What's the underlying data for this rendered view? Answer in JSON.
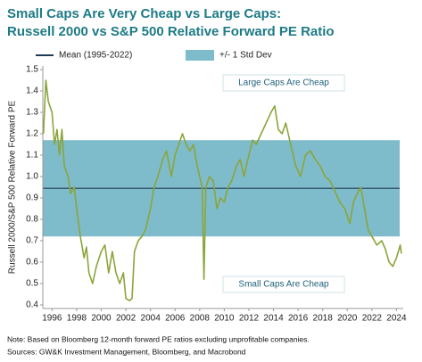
{
  "chart_data": {
    "type": "line",
    "title": [
      "Small Caps Are Very Cheap vs Large Caps:",
      "Russell 2000 vs S&P 500 Relative Forward PE Ratio"
    ],
    "y_label": "Russell 2000/S&P 500 Relative Forward PE",
    "mean": {
      "label": "Mean (1995-2022)",
      "value": 0.945,
      "color": "#1f3a56"
    },
    "band": {
      "label": "+/- 1 Std Dev",
      "low": 0.72,
      "high": 1.17,
      "color": "#7fbccb"
    },
    "annotations": [
      "Large Caps Are Cheap",
      "Small Caps Are Cheap"
    ],
    "notes": [
      "Note: Based on Bloomberg 12-month forward PE ratios excluding unprofitable companies.",
      "Sources: GW&K Investment Management, Bloomberg, and Macrobond"
    ],
    "x": [
      1995.3,
      1995.5,
      1995.7,
      1996.0,
      1996.2,
      1996.4,
      1996.6,
      1996.8,
      1997.0,
      1997.3,
      1997.5,
      1997.8,
      1998.0,
      1998.3,
      1998.6,
      1998.8,
      1999.0,
      1999.3,
      1999.6,
      2000.0,
      2000.3,
      2000.6,
      2000.9,
      2001.2,
      2001.5,
      2001.8,
      2002.0,
      2002.3,
      2002.5,
      2002.7,
      2003.0,
      2003.3,
      2003.6,
      2004.0,
      2004.3,
      2004.6,
      2005.0,
      2005.3,
      2005.7,
      2006.0,
      2006.3,
      2006.6,
      2006.9,
      2007.2,
      2007.5,
      2007.8,
      2008.0,
      2008.2,
      2008.35,
      2008.5,
      2008.8,
      2009.1,
      2009.4,
      2009.7,
      2010.0,
      2010.3,
      2010.6,
      2011.0,
      2011.3,
      2011.6,
      2012.0,
      2012.3,
      2012.6,
      2013.0,
      2013.4,
      2013.8,
      2014.1,
      2014.4,
      2014.7,
      2015.0,
      2015.4,
      2015.8,
      2016.2,
      2016.6,
      2017.0,
      2017.4,
      2017.8,
      2018.2,
      2018.6,
      2019.0,
      2019.4,
      2019.8,
      2020.2,
      2020.5,
      2020.8,
      2021.1,
      2021.4,
      2021.7,
      2022.0,
      2022.4,
      2022.8,
      2023.1,
      2023.4,
      2023.7,
      2024.0,
      2024.3,
      2024.4
    ],
    "series": [
      {
        "color": "#8aa53a",
        "values": [
          1.2,
          1.45,
          1.35,
          1.3,
          1.15,
          1.22,
          1.1,
          1.22,
          1.05,
          1.0,
          0.92,
          0.95,
          0.85,
          0.72,
          0.62,
          0.67,
          0.55,
          0.5,
          0.58,
          0.65,
          0.68,
          0.55,
          0.65,
          0.55,
          0.5,
          0.55,
          0.43,
          0.42,
          0.43,
          0.65,
          0.7,
          0.72,
          0.75,
          0.85,
          0.95,
          1.0,
          1.08,
          1.12,
          1.0,
          1.1,
          1.15,
          1.2,
          1.15,
          1.12,
          1.15,
          1.05,
          1.0,
          0.95,
          0.52,
          0.95,
          1.0,
          0.98,
          0.85,
          0.9,
          0.88,
          0.95,
          0.98,
          1.05,
          1.08,
          1.0,
          1.1,
          1.17,
          1.15,
          1.2,
          1.25,
          1.3,
          1.33,
          1.22,
          1.2,
          1.25,
          1.15,
          1.05,
          1.0,
          1.1,
          1.12,
          1.08,
          1.05,
          1.0,
          0.98,
          0.93,
          0.88,
          0.85,
          0.78,
          0.88,
          0.92,
          0.95,
          0.85,
          0.75,
          0.72,
          0.68,
          0.7,
          0.66,
          0.6,
          0.58,
          0.62,
          0.68,
          0.64
        ]
      }
    ],
    "xlim": [
      1995.25,
      2024.55
    ],
    "ylim": [
      0.4,
      1.5
    ],
    "xticks": [
      1996,
      1998,
      2000,
      2002,
      2004,
      2006,
      2008,
      2010,
      2012,
      2014,
      2016,
      2018,
      2020,
      2022,
      2024
    ],
    "yticks": [
      0.4,
      0.5,
      0.6,
      0.7,
      0.8,
      0.9,
      {
        "value": 1,
        "label": "1.0"
      },
      1.1,
      1.2,
      1.3,
      1.4,
      1.5
    ]
  }
}
